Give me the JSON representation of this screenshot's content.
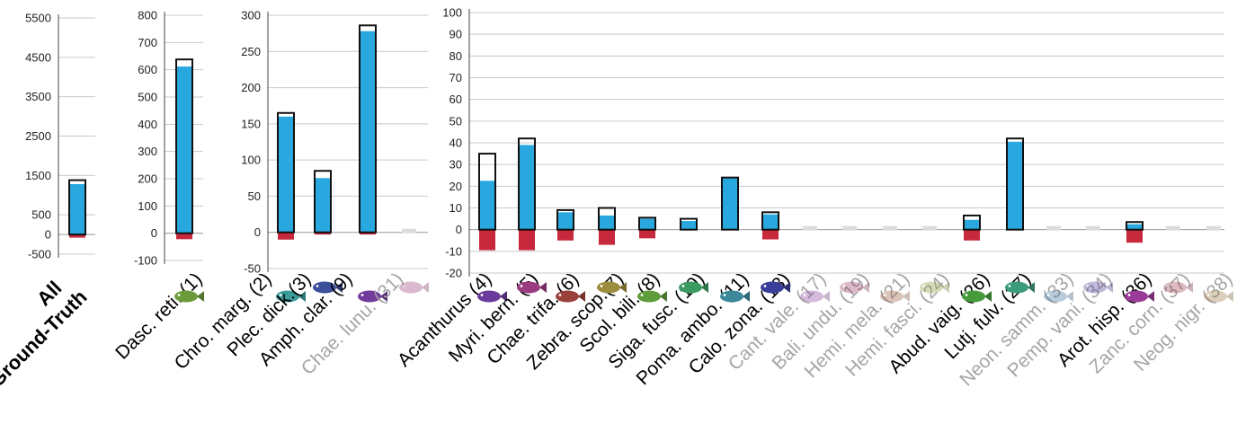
{
  "chart_data": [
    {
      "type": "bar",
      "title": "",
      "category_label_lines": [
        "All",
        "Ground-Truth"
      ],
      "categories": [
        "All"
      ],
      "yticks": [
        5500,
        4500,
        3500,
        2500,
        1500,
        500,
        0,
        -500
      ],
      "ylim": [
        -700,
        5800
      ],
      "series": [
        {
          "role": "total-outline",
          "values": [
            1380
          ]
        },
        {
          "role": "positive-blue",
          "values": [
            1280
          ]
        },
        {
          "role": "negative-red",
          "values": [
            -80
          ]
        }
      ]
    },
    {
      "type": "bar",
      "categories": [
        "Dasc. reti. (1)"
      ],
      "yticks": [
        800,
        700,
        600,
        500,
        400,
        300,
        200,
        100,
        0,
        -100
      ],
      "ylim": [
        -150,
        800
      ],
      "series": [
        {
          "role": "total-outline",
          "values": [
            638
          ]
        },
        {
          "role": "positive-blue",
          "values": [
            612
          ]
        },
        {
          "role": "negative-red",
          "values": [
            -22
          ]
        }
      ]
    },
    {
      "type": "bar",
      "categories": [
        "Chro. marg. (2)",
        "Plec. dick.(3)",
        "Amph. clar. (9)",
        "Chae. lunu. (31)"
      ],
      "yticks": [
        300,
        250,
        200,
        150,
        100,
        50,
        0,
        -50
      ],
      "ylim": [
        -60,
        300
      ],
      "greyed": [
        false,
        false,
        false,
        true
      ],
      "series": [
        {
          "role": "total-outline",
          "values": [
            165,
            85,
            286,
            0
          ]
        },
        {
          "role": "positive-blue",
          "values": [
            160,
            75,
            278,
            0
          ]
        },
        {
          "role": "negative-red",
          "values": [
            -10,
            -3,
            -3,
            0
          ]
        }
      ]
    },
    {
      "type": "bar",
      "categories": [
        "Acanthurus (4)",
        "Myri. bern. (5)",
        "Chae. trifa. (6)",
        "Zebra. scop.(7)",
        "Scol. bili. (8)",
        "Siga. fusc. (10)",
        "Poma. ambo. (11)",
        "Calo. zona. (13)",
        "Cant. vale. (17)",
        "Bali. undu. (19)",
        "Hemi. mela. (21)",
        "Hemi. fasci. (24)",
        "Abud. vaig. (26)",
        "Lutj. fulv. (27)",
        "Neon. samm. (33)",
        "Pemp. vani. (34)",
        "Arot. hisp. (36)",
        "Zanc. corn. (37)",
        "Neog. nigr. (38)"
      ],
      "yticks": [
        100,
        90,
        80,
        70,
        60,
        50,
        40,
        30,
        20,
        10,
        0,
        -10,
        -20
      ],
      "ylim": [
        -22,
        100
      ],
      "greyed": [
        false,
        false,
        false,
        false,
        false,
        false,
        false,
        false,
        true,
        true,
        true,
        true,
        false,
        false,
        true,
        true,
        false,
        true,
        true
      ],
      "series": [
        {
          "role": "total-outline",
          "values": [
            35,
            42,
            9,
            10,
            5.5,
            5,
            24,
            8,
            0,
            0,
            0,
            0,
            6.5,
            42,
            0,
            0,
            3.5,
            0,
            0
          ]
        },
        {
          "role": "positive-blue",
          "values": [
            22.5,
            39,
            8,
            6.5,
            5,
            4,
            24,
            7,
            0,
            0,
            0,
            0,
            4.5,
            40.5,
            0,
            0,
            2.5,
            0,
            0
          ]
        },
        {
          "role": "negative-red",
          "values": [
            -9.5,
            -9.5,
            -5,
            -7,
            -4,
            0,
            0,
            -4.5,
            0,
            0,
            0,
            0,
            -5,
            0,
            0,
            0,
            -6,
            0,
            0
          ]
        }
      ]
    }
  ],
  "colors": {
    "positive": "#29a8e0",
    "negative": "#c8283c",
    "outline": "#111111",
    "label": "#000000",
    "greyed_label": "#a5a5a5",
    "placeholder": "#dcdcdc",
    "grid": "#c9c9c9"
  },
  "icons": [
    "fish-thumbnail-icon"
  ]
}
